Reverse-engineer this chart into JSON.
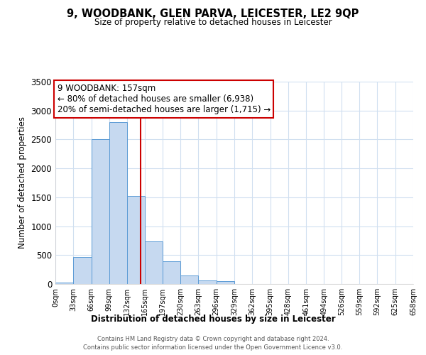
{
  "title": "9, WOODBANK, GLEN PARVA, LEICESTER, LE2 9QP",
  "subtitle": "Size of property relative to detached houses in Leicester",
  "xlabel": "Distribution of detached houses by size in Leicester",
  "ylabel": "Number of detached properties",
  "bar_edges": [
    0,
    33,
    66,
    99,
    132,
    165,
    197,
    230,
    263,
    296,
    329,
    362,
    395,
    428,
    461,
    494,
    526,
    559,
    592,
    625,
    658
  ],
  "bar_heights": [
    30,
    470,
    2500,
    2800,
    1520,
    740,
    390,
    150,
    60,
    50,
    0,
    0,
    0,
    0,
    0,
    0,
    0,
    0,
    0,
    0
  ],
  "bar_color": "#c6d9f0",
  "bar_edge_color": "#5b9bd5",
  "vline_x": 157,
  "vline_color": "#cc0000",
  "annotation_text": "9 WOODBANK: 157sqm\n← 80% of detached houses are smaller (6,938)\n20% of semi-detached houses are larger (1,715) →",
  "annotation_box_color": "#ffffff",
  "annotation_box_edge": "#cc0000",
  "ylim": [
    0,
    3500
  ],
  "yticks": [
    0,
    500,
    1000,
    1500,
    2000,
    2500,
    3000,
    3500
  ],
  "tick_labels": [
    "0sqm",
    "33sqm",
    "66sqm",
    "99sqm",
    "132sqm",
    "165sqm",
    "197sqm",
    "230sqm",
    "263sqm",
    "296sqm",
    "329sqm",
    "362sqm",
    "395sqm",
    "428sqm",
    "461sqm",
    "494sqm",
    "526sqm",
    "559sqm",
    "592sqm",
    "625sqm",
    "658sqm"
  ],
  "footer_line1": "Contains HM Land Registry data © Crown copyright and database right 2024.",
  "footer_line2": "Contains public sector information licensed under the Open Government Licence v3.0.",
  "grid_color": "#d0dff0",
  "background_color": "#ffffff"
}
